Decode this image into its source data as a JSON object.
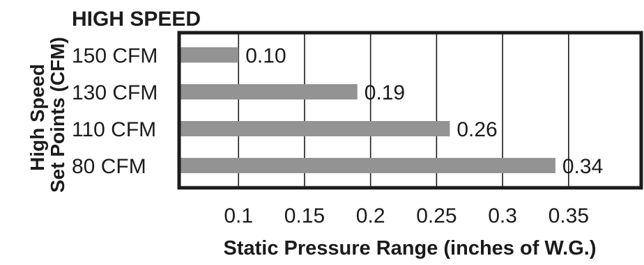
{
  "chart_data": {
    "type": "bar",
    "orientation": "horizontal",
    "title": "HIGH SPEED",
    "ylabel": "High Speed Set Points (CFM)",
    "xlabel": "Static Pressure Range (inches of W.G.)",
    "categories": [
      "150 CFM",
      "130 CFM",
      "110 CFM",
      "80 CFM"
    ],
    "values": [
      0.1,
      0.19,
      0.26,
      0.34
    ],
    "value_labels": [
      "0.10",
      "0.19",
      "0.26",
      "0.34"
    ],
    "xticks": [
      0.1,
      0.15,
      0.2,
      0.25,
      0.3,
      0.35
    ],
    "xtick_labels": [
      "0.1",
      "0.15",
      "0.2",
      "0.25",
      "0.3",
      "0.35"
    ],
    "xlim": [
      0.055,
      0.405
    ],
    "grid": true,
    "legend": "none",
    "colors": {
      "bar": "#939393",
      "frame": "#1b1b1b",
      "grid": "#1b1b1b",
      "text": "#1b1b1b"
    }
  }
}
